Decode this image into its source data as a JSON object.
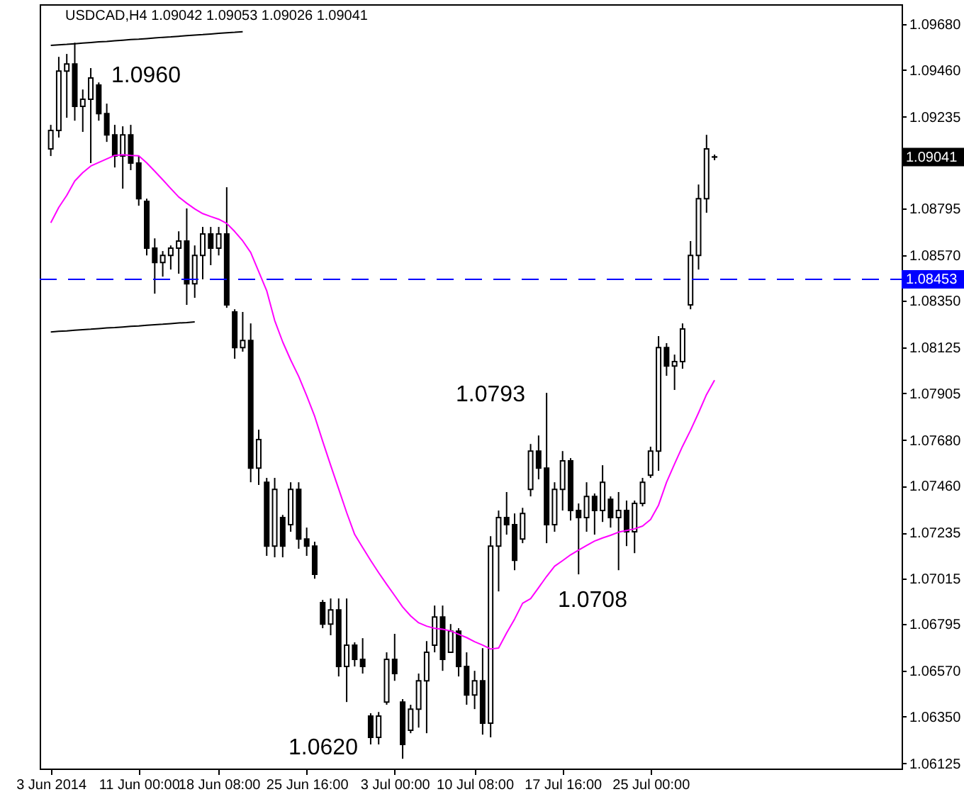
{
  "chart_data": {
    "type": "candlestick",
    "title": "USDCAD,H4  1.09042 1.09053 1.09026 1.09041",
    "color": "#000000",
    "categories": [
      "3 Jun 2014",
      null,
      null,
      null,
      null,
      null,
      null,
      null,
      null,
      null,
      null,
      "11 Jun 00:00",
      null,
      null,
      null,
      null,
      null,
      null,
      null,
      null,
      null,
      "18 Jun 08:00",
      null,
      null,
      null,
      null,
      null,
      null,
      null,
      null,
      null,
      null,
      "25 Jun 16:00",
      null,
      null,
      null,
      null,
      null,
      null,
      null,
      null,
      null,
      null,
      "3 Jul 00:00",
      null,
      null,
      null,
      null,
      null,
      null,
      null,
      null,
      null,
      "10 Jul 08:00",
      null,
      null,
      null,
      null,
      null,
      null,
      null,
      null,
      null,
      null,
      "17 Jul 16:00",
      null,
      null,
      null,
      null,
      null,
      null,
      null,
      null,
      null,
      null,
      "25 Jul 00:00",
      null,
      null,
      null,
      null,
      null,
      null,
      null,
      null
    ],
    "ohlc": [
      [
        1.0908,
        1.09196,
        1.09046,
        1.09169
      ],
      [
        1.09169,
        1.09523,
        1.09135,
        1.09455
      ],
      [
        1.09455,
        1.09537,
        1.0923,
        1.09489
      ],
      [
        1.09489,
        1.09591,
        1.09216,
        1.09285
      ],
      [
        1.09285,
        1.09366,
        1.09162,
        1.09319
      ],
      [
        1.09319,
        1.09469,
        1.09012,
        1.09421
      ],
      [
        1.09387,
        1.094,
        1.09216,
        1.0925
      ],
      [
        1.0925,
        1.09298,
        1.09114,
        1.09148
      ],
      [
        1.09148,
        1.09196,
        1.08991,
        1.09046
      ],
      [
        1.09046,
        1.09189,
        1.08889,
        1.09148
      ],
      [
        1.09148,
        1.09196,
        1.08978,
        1.09012
      ],
      [
        1.09012,
        1.09046,
        1.08807,
        1.08841
      ],
      [
        1.08828,
        1.08841,
        1.08568,
        1.08603
      ],
      [
        1.08603,
        1.0865,
        1.08384,
        1.08534
      ],
      [
        1.08534,
        1.08589,
        1.08466,
        1.08568
      ],
      [
        1.08568,
        1.08616,
        1.085,
        1.08603
      ],
      [
        1.08603,
        1.08684,
        1.0848,
        1.08637
      ],
      [
        1.08637,
        1.08794,
        1.0833,
        1.08432
      ],
      [
        1.08432,
        1.08616,
        1.08364,
        1.08568
      ],
      [
        1.08568,
        1.08705,
        1.08453,
        1.08671
      ],
      [
        1.08671,
        1.08705,
        1.08521,
        1.08603
      ],
      [
        1.08603,
        1.08705,
        1.08568,
        1.08671
      ],
      [
        1.08671,
        1.08896,
        1.08316,
        1.0833
      ],
      [
        1.08296,
        1.08309,
        1.08071,
        1.08125
      ],
      [
        1.08125,
        1.08296,
        1.08105,
        1.08159
      ],
      [
        1.08159,
        1.08241,
        1.07477,
        1.07545
      ],
      [
        1.07545,
        1.0773,
        1.07464,
        1.07682
      ],
      [
        1.07477,
        1.07498,
        1.07123,
        1.0717
      ],
      [
        1.0717,
        1.07498,
        1.07116,
        1.07443
      ],
      [
        1.07307,
        1.0732,
        1.07116,
        1.0717
      ],
      [
        1.07273,
        1.07477,
        1.07239,
        1.07443
      ],
      [
        1.07443,
        1.07477,
        1.07157,
        1.07204
      ],
      [
        1.07204,
        1.07259,
        1.07123,
        1.0717
      ],
      [
        1.0717,
        1.07191,
        1.07013,
        1.07034
      ],
      [
        1.06898,
        1.06911,
        1.06775,
        1.06795
      ],
      [
        1.06795,
        1.06918,
        1.06741,
        1.06863
      ],
      [
        1.06863,
        1.06918,
        1.06543,
        1.06591
      ],
      [
        1.06591,
        1.06918,
        1.0642,
        1.06693
      ],
      [
        1.06693,
        1.06707,
        1.06591,
        1.06625
      ],
      [
        1.06625,
        1.06727,
        1.06557,
        1.06591
      ],
      [
        1.06352,
        1.06366,
        1.06216,
        1.0625
      ],
      [
        1.0625,
        1.06372,
        1.06216,
        1.06352
      ],
      [
        1.0642,
        1.06659,
        1.06407,
        1.06625
      ],
      [
        1.06625,
        1.06748,
        1.06522,
        1.06557
      ],
      [
        1.0642,
        1.06434,
        1.06147,
        1.06216
      ],
      [
        1.06284,
        1.06407,
        1.0627,
        1.06386
      ],
      [
        1.06386,
        1.06557,
        1.06297,
        1.06522
      ],
      [
        1.06522,
        1.06713,
        1.0627,
        1.06659
      ],
      [
        1.06693,
        1.06884,
        1.06659,
        1.06829
      ],
      [
        1.06829,
        1.06884,
        1.0657,
        1.06625
      ],
      [
        1.06659,
        1.06795,
        1.06659,
        1.06761
      ],
      [
        1.06761,
        1.06775,
        1.06543,
        1.06591
      ],
      [
        1.06591,
        1.06659,
        1.06407,
        1.06454
      ],
      [
        1.06454,
        1.0657,
        1.06386,
        1.06522
      ],
      [
        1.06522,
        1.06679,
        1.06263,
        1.06318
      ],
      [
        1.06318,
        1.07218,
        1.0625,
        1.0717
      ],
      [
        1.0717,
        1.07341,
        1.06952,
        1.07307
      ],
      [
        1.07307,
        1.0743,
        1.07225,
        1.07273
      ],
      [
        1.07273,
        1.07327,
        1.07054,
        1.07102
      ],
      [
        1.07204,
        1.07354,
        1.07184,
        1.07327
      ],
      [
        1.07443,
        1.07661,
        1.07409,
        1.07627
      ],
      [
        1.07627,
        1.07702,
        1.07491,
        1.07545
      ],
      [
        1.07545,
        1.07907,
        1.07184,
        1.07273
      ],
      [
        1.07273,
        1.07477,
        1.07239,
        1.07443
      ],
      [
        1.07443,
        1.07627,
        1.07341,
        1.0758
      ],
      [
        1.0758,
        1.07593,
        1.07293,
        1.07341
      ],
      [
        1.07341,
        1.07375,
        1.07034,
        1.07307
      ],
      [
        1.07307,
        1.07477,
        1.07239,
        1.07409
      ],
      [
        1.07409,
        1.07423,
        1.07225,
        1.07341
      ],
      [
        1.07341,
        1.07559,
        1.07286,
        1.07477
      ],
      [
        1.07395,
        1.07409,
        1.07259,
        1.07307
      ],
      [
        1.07307,
        1.0743,
        1.07054,
        1.07341
      ],
      [
        1.07341,
        1.07389,
        1.0717,
        1.07239
      ],
      [
        1.07239,
        1.07389,
        1.07136,
        1.07375
      ],
      [
        1.07375,
        1.07498,
        1.07361,
        1.07477
      ],
      [
        1.07511,
        1.07648,
        1.07498,
        1.07627
      ],
      [
        1.07627,
        1.0818,
        1.07532,
        1.08125
      ],
      [
        1.08125,
        1.08146,
        1.07989,
        1.08036
      ],
      [
        1.08036,
        1.08091,
        1.07921,
        1.08057
      ],
      [
        1.08057,
        1.08241,
        1.08023,
        1.08214
      ],
      [
        1.0833,
        1.08637,
        1.08309,
        1.08568
      ],
      [
        1.08568,
        1.08909,
        1.085,
        1.08841
      ],
      [
        1.08841,
        1.09148,
        1.08773,
        1.0908
      ],
      [
        1.09042,
        1.09053,
        1.09026,
        1.09041
      ]
    ],
    "series": [
      {
        "type": "line",
        "color": "#ff00ff",
        "values": [
          1.08725,
          1.08799,
          1.08857,
          1.08926,
          1.08966,
          1.08998,
          1.09015,
          1.09032,
          1.09049,
          1.09052,
          1.09049,
          1.09047,
          1.09013,
          1.08973,
          1.08932,
          1.0889,
          1.08849,
          1.08819,
          1.08792,
          1.08769,
          1.08755,
          1.08742,
          1.08722,
          1.08683,
          1.08638,
          1.08582,
          1.0849,
          1.08398,
          1.08255,
          1.08152,
          1.08065,
          1.07986,
          1.07893,
          1.07794,
          1.07674,
          1.07558,
          1.07445,
          1.07331,
          1.07226,
          1.07163,
          1.07101,
          1.07042,
          1.06986,
          1.06932,
          1.06877,
          1.06834,
          1.06801,
          1.06785,
          1.06774,
          1.0677,
          1.06762,
          1.06746,
          1.0673,
          1.0671,
          1.06694,
          1.06675,
          1.0668,
          1.06752,
          1.06819,
          1.06895,
          1.06917,
          1.0697,
          1.07024,
          1.07073,
          1.071,
          1.07128,
          1.07151,
          1.07173,
          1.07194,
          1.07209,
          1.07222,
          1.07237,
          1.07245,
          1.07253,
          1.07266,
          1.07298,
          1.07367,
          1.07477,
          1.07565,
          1.0765,
          1.07727,
          1.07811,
          1.07899,
          1.07968
        ]
      },
      {
        "type": "line",
        "color": "#000000",
        "values": [
          1.09578,
          1.09581,
          1.09583,
          1.09586,
          1.09589,
          1.09592,
          1.09595,
          1.09597,
          1.096,
          1.09603,
          1.09606,
          1.09608,
          1.09611,
          1.09614,
          1.09617,
          1.09619,
          1.09622,
          1.09625,
          1.09628,
          1.0963,
          1.09633,
          1.09636,
          1.09639,
          1.09641,
          1.09644,
          null,
          null,
          null,
          null,
          null,
          null,
          null,
          null,
          null,
          null,
          null,
          null,
          null,
          null,
          null,
          null,
          null,
          null,
          null,
          null,
          null,
          null,
          null,
          null,
          null,
          null,
          null,
          null,
          null,
          null,
          null,
          null,
          null,
          null,
          null,
          null,
          null,
          null,
          null,
          null,
          null,
          null,
          null,
          null,
          null,
          null,
          null,
          null,
          null,
          null,
          null,
          null,
          null,
          null,
          null,
          null,
          null,
          null,
          null
        ]
      },
      {
        "type": "line",
        "color": "#000000",
        "values": [
          1.082,
          1.08203,
          1.08205,
          1.08208,
          1.08211,
          1.08213,
          1.08216,
          1.08219,
          1.08221,
          1.08224,
          1.08227,
          1.08229,
          1.08232,
          1.08235,
          1.08237,
          1.0824,
          1.08243,
          1.08245,
          1.08248,
          null,
          null,
          null,
          null,
          null,
          null,
          null,
          null,
          null,
          null,
          null,
          null,
          null,
          null,
          null,
          null,
          null,
          null,
          null,
          null,
          null,
          null,
          null,
          null,
          null,
          null,
          null,
          null,
          null,
          null,
          null,
          null,
          null,
          null,
          null,
          null,
          null,
          null,
          null,
          null,
          null,
          null,
          null,
          null,
          null,
          null,
          null,
          null,
          null,
          null,
          null,
          null,
          null,
          null,
          null,
          null,
          null,
          null,
          null,
          null,
          null,
          null,
          null,
          null,
          null
        ]
      }
    ],
    "ylim": [
      1.061,
      1.09776
    ],
    "yticks": [
      {
        "value": 1.0968,
        "label": "1.09680"
      },
      {
        "value": 1.0946,
        "label": "1.09460"
      },
      {
        "value": 1.09235,
        "label": "1.09235"
      },
      {
        "value": 1.08795,
        "label": "1.08795"
      },
      {
        "value": 1.0857,
        "label": "1.08570"
      },
      {
        "value": 1.0835,
        "label": "1.08350"
      },
      {
        "value": 1.08125,
        "label": "1.08125"
      },
      {
        "value": 1.07905,
        "label": "1.07905"
      },
      {
        "value": 1.0768,
        "label": "1.07680"
      },
      {
        "value": 1.0746,
        "label": "1.07460"
      },
      {
        "value": 1.07235,
        "label": "1.07235"
      },
      {
        "value": 1.07015,
        "label": "1.07015"
      },
      {
        "value": 1.06795,
        "label": "1.06795"
      },
      {
        "value": 1.0657,
        "label": "1.06570"
      },
      {
        "value": 1.0635,
        "label": "1.06350"
      },
      {
        "value": 1.06125,
        "label": "1.06125"
      }
    ],
    "ref_lines": [
      {
        "axis": "y",
        "value": 1.08453,
        "label": "1.08453",
        "color": "#0000ff",
        "line_style": "dashed"
      }
    ],
    "annotations": [
      "1.0960",
      "1.0793",
      "1.0708",
      "1.0620",
      "1.09041"
    ]
  }
}
